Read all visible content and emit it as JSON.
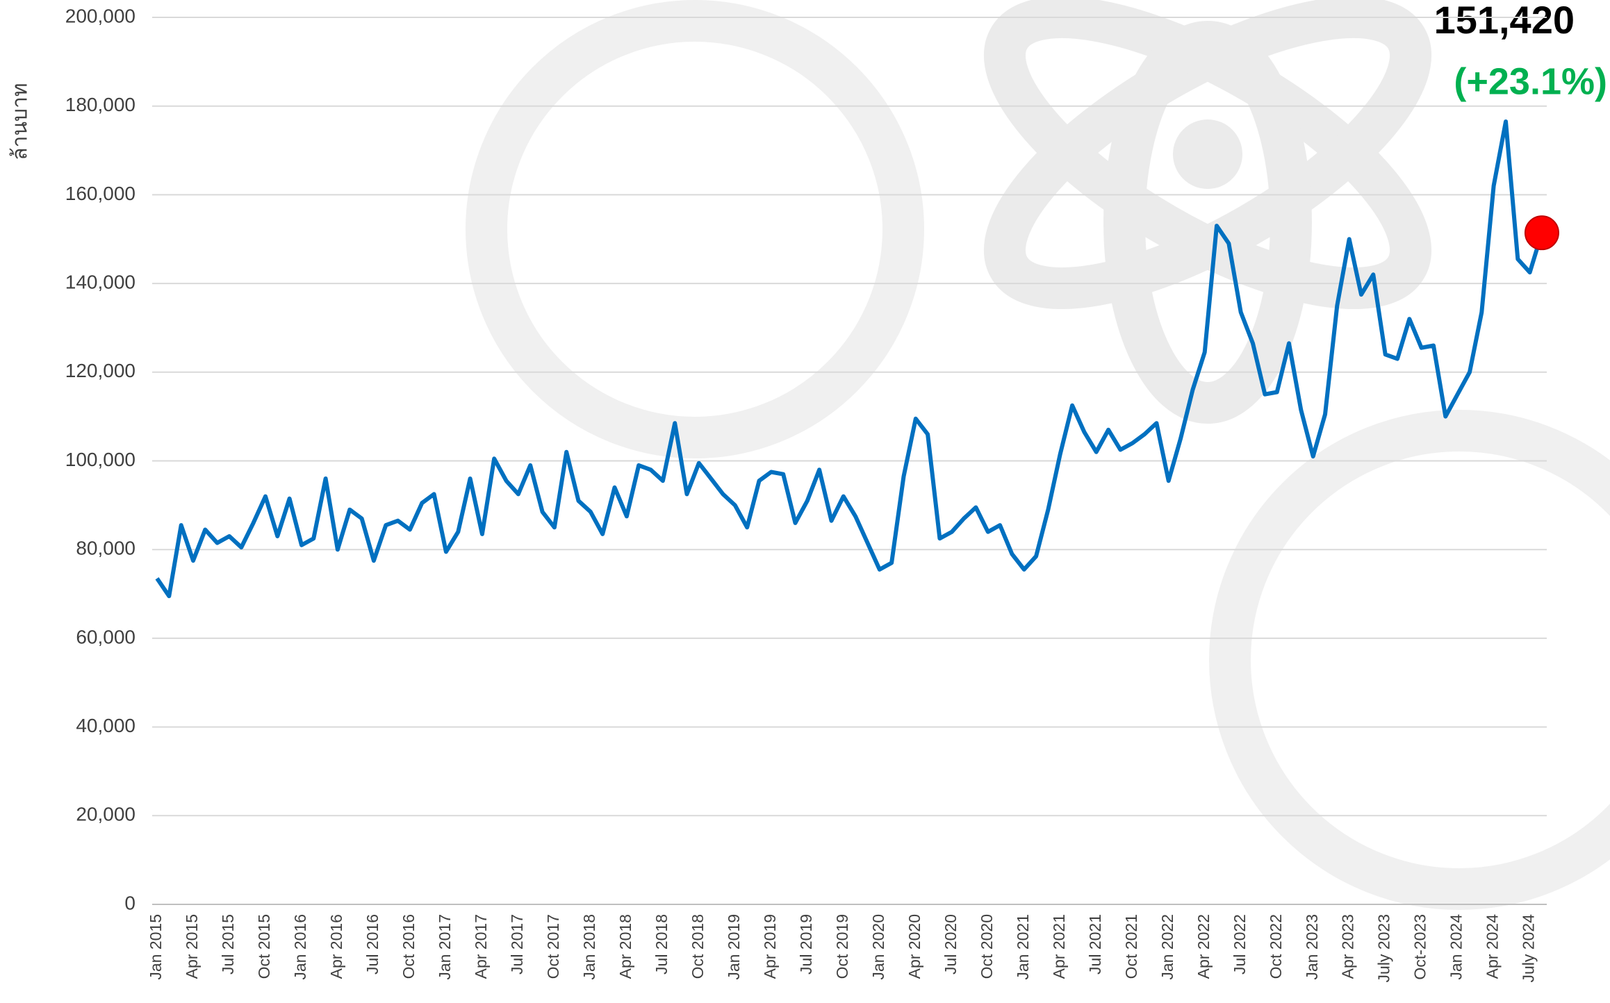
{
  "chart_data": {
    "type": "line",
    "y_label": "ล้านบาท",
    "annotations": [
      "151,420",
      "(+23.1%)"
    ],
    "categories": [
      "Jan 2015",
      null,
      null,
      "Apr 2015",
      null,
      null,
      "Jul 2015",
      null,
      null,
      "Oct 2015",
      null,
      null,
      "Jan 2016",
      null,
      null,
      "Apr 2016",
      null,
      null,
      "Jul 2016",
      null,
      null,
      "Oct 2016",
      null,
      null,
      "Jan 2017",
      null,
      null,
      "Apr 2017",
      null,
      null,
      "Jul 2017",
      null,
      null,
      "Oct 2017",
      null,
      null,
      "Jan 2018",
      null,
      null,
      "Apr 2018",
      null,
      null,
      "Jul 2018",
      null,
      null,
      "Oct 2018",
      null,
      null,
      "Jan 2019",
      null,
      null,
      "Apr 2019",
      null,
      null,
      "Jul 2019",
      null,
      null,
      "Oct 2019",
      null,
      null,
      "Jan 2020",
      null,
      null,
      "Apr 2020",
      null,
      null,
      "Jul 2020",
      null,
      null,
      "Oct 2020",
      null,
      null,
      "Jan 2021",
      null,
      null,
      "Apr 2021",
      null,
      null,
      "Jul 2021",
      null,
      null,
      "Oct 2021",
      null,
      null,
      "Jan 2022",
      null,
      null,
      "Apr 2022",
      null,
      null,
      "Jul 2022",
      null,
      null,
      "Oct 2022",
      null,
      null,
      "Jan 2023",
      null,
      null,
      "Apr 2023",
      null,
      null,
      "July 2023",
      null,
      null,
      "Oct-2023",
      null,
      null,
      "Jan 2024",
      null,
      null,
      "Apr 2024",
      null,
      null,
      "July 2024",
      null
    ],
    "values": [
      73500,
      69500,
      85500,
      77500,
      84500,
      81500,
      83000,
      80500,
      86000,
      92000,
      83000,
      91500,
      81000,
      82500,
      96000,
      80000,
      89000,
      87000,
      77500,
      85500,
      86500,
      84500,
      90500,
      92500,
      79500,
      84000,
      96000,
      83500,
      100500,
      95500,
      92500,
      99000,
      88500,
      85000,
      102000,
      91000,
      88500,
      83500,
      94000,
      87500,
      99000,
      98000,
      95500,
      108500,
      92500,
      99500,
      96000,
      92500,
      90000,
      85000,
      95500,
      97500,
      97000,
      86000,
      91000,
      98000,
      86500,
      92000,
      87500,
      81500,
      75500,
      77000,
      96500,
      109500,
      106000,
      82500,
      84000,
      87000,
      89500,
      84000,
      85500,
      79000,
      75500,
      78500,
      89000,
      101500,
      112500,
      106500,
      102000,
      107000,
      102500,
      104000,
      106000,
      108500,
      95500,
      105000,
      116000,
      124500,
      153000,
      149000,
      133500,
      126500,
      115000,
      115500,
      126500,
      111500,
      101000,
      110500,
      135000,
      150000,
      137500,
      142000,
      124000,
      123000,
      132000,
      125500,
      126000,
      110000,
      115000,
      120000,
      133500,
      162000,
      176500,
      145500,
      142500,
      151420
    ],
    "color": "#0070c0",
    "highlight_color": "#ff0000",
    "ylim": [
      0,
      200000
    ],
    "yticks": [
      0,
      {
        "value": 20000,
        "label": "20,000"
      },
      {
        "value": 40000,
        "label": "40,000"
      },
      {
        "value": 60000,
        "label": "60,000"
      },
      {
        "value": 80000,
        "label": "80,000"
      },
      {
        "value": 100000,
        "label": "100,000"
      },
      {
        "value": 120000,
        "label": "120,000"
      },
      {
        "value": 140000,
        "label": "140,000"
      },
      {
        "value": 160000,
        "label": "160,000"
      },
      {
        "value": 180000,
        "label": "180,000"
      },
      {
        "value": 200000,
        "label": "200,000"
      }
    ],
    "grid": true
  }
}
